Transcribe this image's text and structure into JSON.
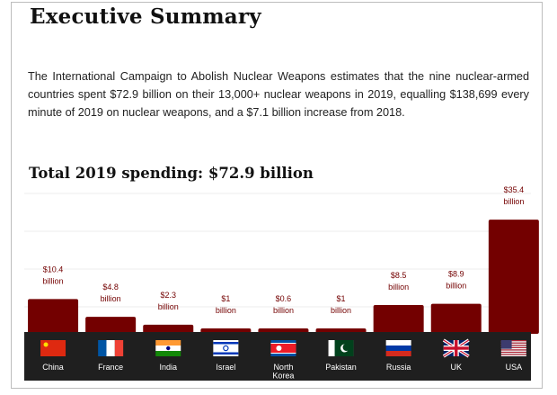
{
  "page": {
    "title": "Executive Summary",
    "intro": "The International Campaign to Abolish Nuclear Weapons estimates that the nine nuclear-armed countries spent $72.9 billion on their 13,000+ nuclear weapons in 2019, equalling $138,699 every minute of 2019 on nuclear weapons, and a $7.1 billion increase from 2018."
  },
  "colors": {
    "bar": "#730000",
    "strip": "#1f1f1f"
  },
  "chart_data": {
    "type": "bar",
    "title": "Total 2019 spending: $72.9 billion",
    "xlabel": "",
    "ylabel": "",
    "ylim": [
      0,
      38
    ],
    "grid": true,
    "categories": [
      "China",
      "France",
      "India",
      "Israel",
      "North Korea",
      "Pakistan",
      "Russia",
      "UK",
      "USA"
    ],
    "category_lines": [
      [
        "China"
      ],
      [
        "France"
      ],
      [
        "India"
      ],
      [
        "Israel"
      ],
      [
        "North",
        "Korea"
      ],
      [
        "Pakistan"
      ],
      [
        "Russia"
      ],
      [
        "UK"
      ],
      [
        "USA"
      ]
    ],
    "flags": [
      "china-flag-icon",
      "france-flag-icon",
      "india-flag-icon",
      "israel-flag-icon",
      "north-korea-flag-icon",
      "pakistan-flag-icon",
      "russia-flag-icon",
      "uk-flag-icon",
      "usa-flag-icon"
    ],
    "values": [
      10.4,
      4.8,
      2.3,
      1,
      0.6,
      1,
      8.5,
      8.9,
      35.4
    ],
    "value_labels": [
      [
        "$10.4",
        "billion"
      ],
      [
        "$4.8",
        "billion"
      ],
      [
        "$2.3",
        "billion"
      ],
      [
        "$1",
        "billion"
      ],
      [
        "$0.6",
        "billion"
      ],
      [
        "$1",
        "billion"
      ],
      [
        "$8.5",
        "billion"
      ],
      [
        "$8.9",
        "billion"
      ],
      [
        "$35.4",
        "billion"
      ]
    ]
  }
}
